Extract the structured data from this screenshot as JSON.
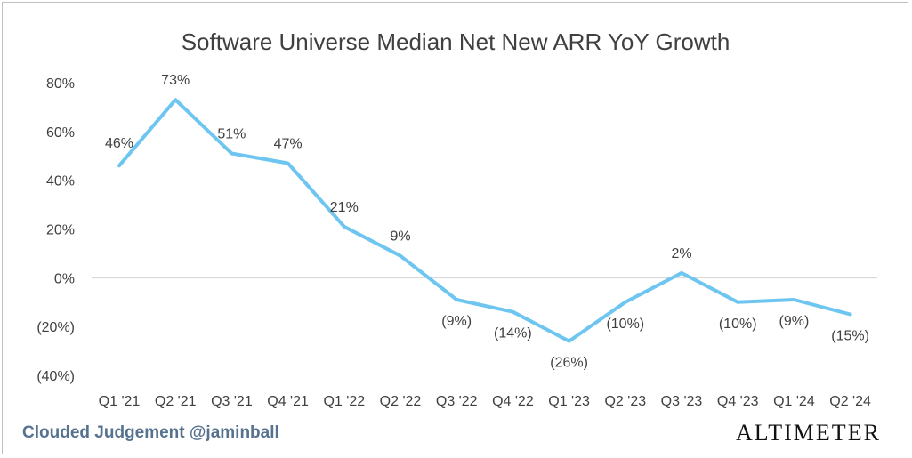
{
  "footer": {
    "credit": "Clouded Judgement @jaminball",
    "brand": "Altimeter"
  },
  "colors": {
    "line": "#6ec6f0",
    "axis": "#d9d9d9",
    "text": "#404040",
    "credit": "#56728f"
  },
  "chart_data": {
    "type": "line",
    "title": "Software Universe Median Net New ARR YoY Growth",
    "xlabel": "",
    "ylabel": "",
    "ylim": [
      -40,
      80
    ],
    "yticks": [
      80,
      60,
      40,
      20,
      0,
      -20,
      -40
    ],
    "ytick_labels": [
      "80%",
      "60%",
      "40%",
      "20%",
      "0%",
      "(20%)",
      "(40%)"
    ],
    "grid": false,
    "categories": [
      "Q1 '21",
      "Q2 '21",
      "Q3 '21",
      "Q4 '21",
      "Q1 '22",
      "Q2 '22",
      "Q3 '22",
      "Q4 '22",
      "Q1 '23",
      "Q2 '23",
      "Q3 '23",
      "Q4 '23",
      "Q1 '24",
      "Q2 '24"
    ],
    "series": [
      {
        "values": [
          46,
          73,
          51,
          47,
          21,
          9,
          -9,
          -14,
          -26,
          -10,
          2,
          -10,
          -9,
          -15
        ],
        "labels": [
          "46%",
          "73%",
          "51%",
          "47%",
          "21%",
          "9%",
          "(9%)",
          "(14%)",
          "(26%)",
          "(10%)",
          "2%",
          "(10%)",
          "(9%)",
          "(15%)"
        ]
      }
    ]
  }
}
